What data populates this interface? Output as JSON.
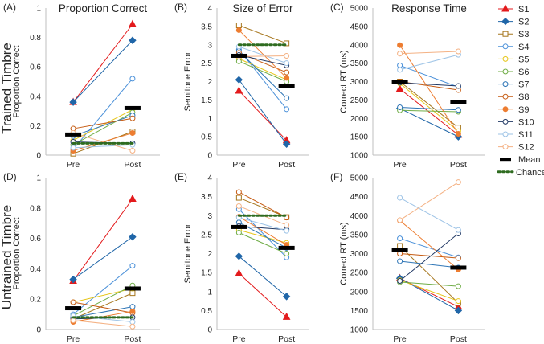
{
  "row_titles": [
    "Trained Timbre",
    "Untrained Timbre"
  ],
  "legend": {
    "position": "right",
    "subjects": [
      {
        "name": "S1",
        "color": "#e31a1c",
        "marker": "triangle"
      },
      {
        "name": "S2",
        "color": "#2066a8",
        "marker": "diamond"
      },
      {
        "name": "S3",
        "color": "#a6761d",
        "marker": "square-open"
      },
      {
        "name": "S4",
        "color": "#4a90d9",
        "marker": "circle-open"
      },
      {
        "name": "S5",
        "color": "#e6c619",
        "marker": "circle-open"
      },
      {
        "name": "S6",
        "color": "#70ad47",
        "marker": "circle-open"
      },
      {
        "name": "S7",
        "color": "#2e75b6",
        "marker": "circle-open"
      },
      {
        "name": "S8",
        "color": "#c55a11",
        "marker": "circle-open"
      },
      {
        "name": "S9",
        "color": "#ed7d31",
        "marker": "circle"
      },
      {
        "name": "S10",
        "color": "#203864",
        "marker": "circle-open"
      },
      {
        "name": "S11",
        "color": "#9dc3e6",
        "marker": "circle-open"
      },
      {
        "name": "S12",
        "color": "#f4b183",
        "marker": "circle-open"
      }
    ],
    "mean_label": "Mean",
    "chance_label": "Chance"
  },
  "colors": {
    "mean": "#000000",
    "chance": "#2e6b1f"
  },
  "chart_data": [
    {
      "id": "A",
      "panel_label": "(A)",
      "type": "line",
      "title": "Proportion Correct",
      "ylabel": "Proportion Correct",
      "categories": [
        "Pre",
        "Post"
      ],
      "ylim": [
        0,
        1
      ],
      "yticks": [
        0,
        0.2,
        0.4,
        0.6,
        0.8,
        1
      ],
      "mean": [
        0.14,
        0.32
      ],
      "chance": 0.08,
      "series": [
        {
          "name": "S1",
          "values": [
            0.36,
            0.89
          ]
        },
        {
          "name": "S2",
          "values": [
            0.36,
            0.78
          ]
        },
        {
          "name": "S3",
          "values": [
            0.01,
            0.16
          ]
        },
        {
          "name": "S4",
          "values": [
            0.04,
            0.52
          ]
        },
        {
          "name": "S5",
          "values": [
            0.1,
            0.31
          ]
        },
        {
          "name": "S6",
          "values": [
            0.07,
            0.29
          ]
        },
        {
          "name": "S7",
          "values": [
            0.13,
            0.27
          ]
        },
        {
          "name": "S8",
          "values": [
            0.18,
            0.25
          ]
        },
        {
          "name": "S9",
          "values": [
            0.03,
            0.15
          ]
        },
        {
          "name": "S10",
          "values": [
            0.09,
            0.08
          ]
        },
        {
          "name": "S11",
          "values": [
            0.05,
            0.07
          ]
        },
        {
          "name": "S12",
          "values": [
            0.15,
            0.03
          ]
        }
      ]
    },
    {
      "id": "B",
      "panel_label": "(B)",
      "type": "line",
      "title": "Size of Error",
      "ylabel": "Semitone Error",
      "categories": [
        "Pre",
        "Post"
      ],
      "ylim": [
        0,
        4
      ],
      "yticks": [
        0,
        0.5,
        1,
        1.5,
        2,
        2.5,
        3,
        3.5,
        4
      ],
      "mean": [
        2.7,
        1.87
      ],
      "chance": 3.0,
      "series": [
        {
          "name": "S1",
          "values": [
            1.75,
            0.4
          ]
        },
        {
          "name": "S2",
          "values": [
            2.05,
            0.3
          ]
        },
        {
          "name": "S3",
          "values": [
            3.53,
            3.04
          ]
        },
        {
          "name": "S4",
          "values": [
            2.87,
            1.25
          ]
        },
        {
          "name": "S5",
          "values": [
            2.62,
            2.05
          ]
        },
        {
          "name": "S6",
          "values": [
            2.55,
            2.0
          ]
        },
        {
          "name": "S7",
          "values": [
            2.83,
            1.55
          ]
        },
        {
          "name": "S8",
          "values": [
            2.78,
            2.25
          ]
        },
        {
          "name": "S9",
          "values": [
            3.4,
            2.1
          ]
        },
        {
          "name": "S10",
          "values": [
            2.72,
            2.44
          ]
        },
        {
          "name": "S11",
          "values": [
            2.95,
            2.5
          ]
        },
        {
          "name": "S12",
          "values": [
            2.68,
            2.7
          ]
        }
      ]
    },
    {
      "id": "C",
      "panel_label": "(C)",
      "type": "line",
      "title": "Response Time",
      "ylabel": "Correct RT (ms)",
      "categories": [
        "Pre",
        "Post"
      ],
      "ylim": [
        1000,
        5000
      ],
      "yticks": [
        1000,
        1500,
        2000,
        2500,
        3000,
        3500,
        4000,
        4500,
        5000
      ],
      "mean": [
        2980,
        2450
      ],
      "chance": null,
      "series": [
        {
          "name": "S1",
          "values": [
            2800,
            1550
          ]
        },
        {
          "name": "S2",
          "values": [
            2270,
            1500
          ]
        },
        {
          "name": "S3",
          "values": [
            3000,
            1750
          ]
        },
        {
          "name": "S4",
          "values": [
            3440,
            2850
          ]
        },
        {
          "name": "S5",
          "values": [
            2950,
            1650
          ]
        },
        {
          "name": "S6",
          "values": [
            2220,
            2180
          ]
        },
        {
          "name": "S7",
          "values": [
            2300,
            2230
          ]
        },
        {
          "name": "S8",
          "values": [
            3000,
            2770
          ]
        },
        {
          "name": "S9",
          "values": [
            3990,
            1580
          ]
        },
        {
          "name": "S10",
          "values": [
            2970,
            2880
          ]
        },
        {
          "name": "S11",
          "values": [
            3320,
            3730
          ]
        },
        {
          "name": "S12",
          "values": [
            3760,
            3820
          ]
        }
      ]
    },
    {
      "id": "D",
      "panel_label": "(D)",
      "type": "line",
      "title": "",
      "ylabel": "Proportion Correct",
      "categories": [
        "Pre",
        "Post"
      ],
      "ylim": [
        0,
        1
      ],
      "yticks": [
        0,
        0.2,
        0.4,
        0.6,
        0.8,
        1
      ],
      "mean": [
        0.14,
        0.27
      ],
      "chance": 0.08,
      "series": [
        {
          "name": "S1",
          "values": [
            0.32,
            0.86
          ]
        },
        {
          "name": "S2",
          "values": [
            0.33,
            0.61
          ]
        },
        {
          "name": "S3",
          "values": [
            0.07,
            0.24
          ]
        },
        {
          "name": "S4",
          "values": [
            0.1,
            0.42
          ]
        },
        {
          "name": "S5",
          "values": [
            0.18,
            0.27
          ]
        },
        {
          "name": "S6",
          "values": [
            0.09,
            0.29
          ]
        },
        {
          "name": "S7",
          "values": [
            0.08,
            0.15
          ]
        },
        {
          "name": "S8",
          "values": [
            0.18,
            0.11
          ]
        },
        {
          "name": "S9",
          "values": [
            0.05,
            0.12
          ]
        },
        {
          "name": "S10",
          "values": [
            0.07,
            0.08
          ]
        },
        {
          "name": "S11",
          "values": [
            0.09,
            0.05
          ]
        },
        {
          "name": "S12",
          "values": [
            0.06,
            0.02
          ]
        }
      ]
    },
    {
      "id": "E",
      "panel_label": "(E)",
      "type": "line",
      "title": "",
      "ylabel": "Semitone Error",
      "categories": [
        "Pre",
        "Post"
      ],
      "ylim": [
        0,
        4
      ],
      "yticks": [
        0,
        0.5,
        1,
        1.5,
        2,
        2.5,
        3,
        3.5,
        4
      ],
      "mean": [
        2.7,
        2.15
      ],
      "chance": 3.0,
      "series": [
        {
          "name": "S1",
          "values": [
            1.48,
            0.33
          ]
        },
        {
          "name": "S2",
          "values": [
            1.93,
            0.87
          ]
        },
        {
          "name": "S3",
          "values": [
            3.47,
            2.96
          ]
        },
        {
          "name": "S4",
          "values": [
            3.17,
            1.9
          ]
        },
        {
          "name": "S5",
          "values": [
            2.62,
            2.28
          ]
        },
        {
          "name": "S6",
          "values": [
            2.55,
            2.0
          ]
        },
        {
          "name": "S7",
          "values": [
            2.82,
            2.15
          ]
        },
        {
          "name": "S8",
          "values": [
            3.62,
            2.95
          ]
        },
        {
          "name": "S9",
          "values": [
            2.97,
            2.23
          ]
        },
        {
          "name": "S10",
          "values": [
            2.72,
            2.63
          ]
        },
        {
          "name": "S11",
          "values": [
            2.95,
            2.6
          ]
        },
        {
          "name": "S12",
          "values": [
            3.25,
            2.75
          ]
        }
      ]
    },
    {
      "id": "F",
      "panel_label": "(F)",
      "type": "line",
      "title": "",
      "ylabel": "Correct RT (ms)",
      "categories": [
        "Pre",
        "Post"
      ],
      "ylim": [
        1000,
        5000
      ],
      "yticks": [
        1000,
        1500,
        2000,
        2500,
        3000,
        3500,
        4000,
        4500,
        5000
      ],
      "mean": [
        3100,
        2630
      ],
      "chance": null,
      "series": [
        {
          "name": "S1",
          "values": [
            2350,
            1600
          ]
        },
        {
          "name": "S2",
          "values": [
            2350,
            1500
          ]
        },
        {
          "name": "S3",
          "values": [
            3200,
            1700
          ]
        },
        {
          "name": "S4",
          "values": [
            3400,
            2900
          ]
        },
        {
          "name": "S5",
          "values": [
            2300,
            1750
          ]
        },
        {
          "name": "S6",
          "values": [
            2250,
            2140
          ]
        },
        {
          "name": "S7",
          "values": [
            2800,
            2630
          ]
        },
        {
          "name": "S8",
          "values": [
            3000,
            2880
          ]
        },
        {
          "name": "S9",
          "values": [
            3870,
            2580
          ]
        },
        {
          "name": "S10",
          "values": [
            2280,
            3530
          ]
        },
        {
          "name": "S11",
          "values": [
            4470,
            3620
          ]
        },
        {
          "name": "S12",
          "values": [
            3880,
            4880
          ]
        }
      ]
    }
  ]
}
